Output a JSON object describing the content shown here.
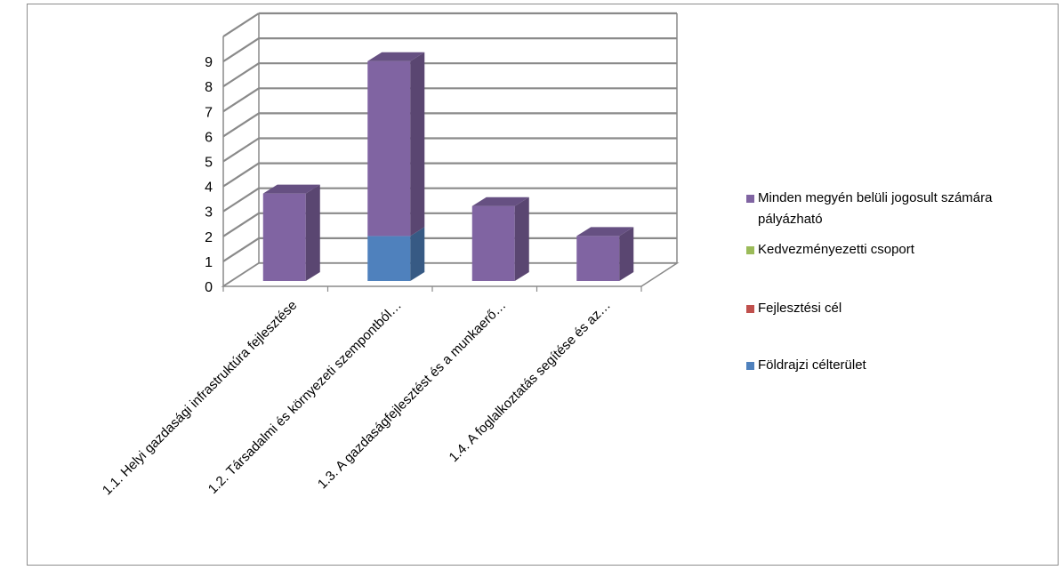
{
  "chart_data": {
    "type": "bar",
    "stacked": true,
    "three_d": true,
    "categories": [
      "1.1. Helyi gazdasági infrastruktúra fejlesztése",
      "1.2. Társadalmi és környezeti szempontból…",
      "1.3. A gazdaságfejlesztést és a munkaerő…",
      "1.4. A foglalkoztatás segítése és az…"
    ],
    "series": [
      {
        "name": "Földrajzi célterület",
        "color": "#4f81bd",
        "values": [
          0,
          1.8,
          0,
          0
        ]
      },
      {
        "name": "Fejlesztési cél",
        "color": "#c0504d",
        "values": [
          0,
          0,
          0,
          0
        ]
      },
      {
        "name": "Kedvezményezetti csoport",
        "color": "#9bbb59",
        "values": [
          0,
          0,
          0,
          0
        ]
      },
      {
        "name": "Minden megyén belüli jogosult számára pályázható",
        "color": "#8064a2",
        "values": [
          3.5,
          7.0,
          3.0,
          1.8
        ]
      }
    ],
    "y_ticks": [
      "0",
      "1",
      "2",
      "3",
      "4",
      "5",
      "6",
      "7",
      "8",
      "9"
    ],
    "ylim": [
      0,
      9
    ],
    "grid": true,
    "legend_position": "right",
    "legend": [
      {
        "label_lines": [
          "Minden megyén belüli jogosult számára",
          "pályázható"
        ],
        "color": "#8064a2"
      },
      {
        "label_lines": [
          "Kedvezményezetti csoport"
        ],
        "color": "#9bbb59"
      },
      {
        "label_lines": [
          "Fejlesztési cél"
        ],
        "color": "#c0504d"
      },
      {
        "label_lines": [
          "Földrajzi célterület"
        ],
        "color": "#4f81bd"
      }
    ]
  }
}
